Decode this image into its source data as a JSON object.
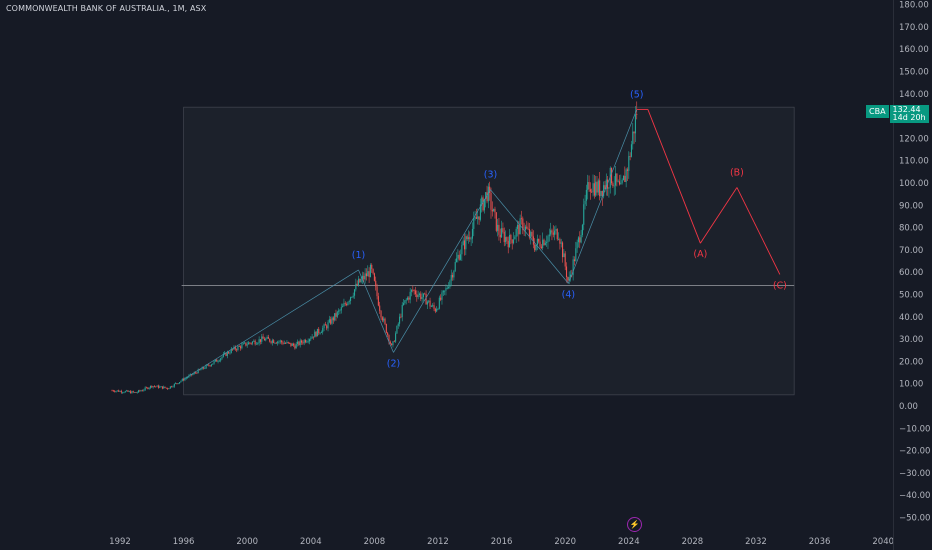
{
  "header": {
    "title": "COMMONWEALTH BANK OF AUSTRALIA., 1M, ASX"
  },
  "price_badge": {
    "symbol": "CBA",
    "price": "132.44",
    "countdown": "14d 20h",
    "color": "#089981"
  },
  "event_icon": "lightning-icon",
  "colors": {
    "background": "#161a25",
    "up_candle": "#26a69a",
    "down_candle": "#ef5350",
    "wave_label_blue": "#2962ff",
    "projection_red": "#f23645",
    "axis_text": "#b2b5be"
  },
  "chart_data": {
    "type": "candlestick",
    "title": "COMMONWEALTH BANK OF AUSTRALIA., 1M, ASX",
    "xlim": [
      1991,
      2040
    ],
    "ylim": [
      -55,
      183
    ],
    "x_ticks": [
      "1992",
      "1996",
      "2000",
      "2004",
      "2008",
      "2012",
      "2016",
      "2020",
      "2024",
      "2028",
      "2032",
      "2036",
      "2040"
    ],
    "y_ticks": [
      "180.00",
      "170.00",
      "160.00",
      "150.00",
      "140.00",
      "130.00",
      "120.00",
      "110.00",
      "100.00",
      "90.00",
      "80.00",
      "70.00",
      "60.00",
      "50.00",
      "40.00",
      "30.00",
      "20.00",
      "10.00",
      "0.00",
      "−10.00",
      "−20.00",
      "−30.00",
      "−40.00",
      "−50.00"
    ],
    "price_anchors": [
      [
        1991.5,
        7
      ],
      [
        1993,
        6
      ],
      [
        1994,
        9
      ],
      [
        1995,
        8
      ],
      [
        1996,
        12
      ],
      [
        1997,
        16
      ],
      [
        1998,
        20
      ],
      [
        1999,
        25
      ],
      [
        2000,
        28
      ],
      [
        2001,
        30
      ],
      [
        2002,
        29
      ],
      [
        2003,
        27
      ],
      [
        2004,
        31
      ],
      [
        2005,
        36
      ],
      [
        2006,
        44
      ],
      [
        2007,
        55
      ],
      [
        2007.8,
        61
      ],
      [
        2008.4,
        42
      ],
      [
        2009.1,
        26
      ],
      [
        2009.8,
        45
      ],
      [
        2010.4,
        52
      ],
      [
        2011.2,
        48
      ],
      [
        2011.8,
        43
      ],
      [
        2012.5,
        52
      ],
      [
        2013.3,
        68
      ],
      [
        2014.2,
        80
      ],
      [
        2015.1,
        96
      ],
      [
        2015.8,
        78
      ],
      [
        2016.5,
        74
      ],
      [
        2017.3,
        82
      ],
      [
        2018.1,
        72
      ],
      [
        2018.9,
        76
      ],
      [
        2019.6,
        78
      ],
      [
        2020.2,
        55
      ],
      [
        2020.9,
        76
      ],
      [
        2021.5,
        100
      ],
      [
        2022.2,
        97
      ],
      [
        2022.9,
        103
      ],
      [
        2023.5,
        96
      ],
      [
        2024.0,
        110
      ],
      [
        2024.5,
        132.44
      ]
    ],
    "elliott_wave": {
      "points": [
        {
          "label": "(1)",
          "x": 2007.0,
          "y": 61
        },
        {
          "label": "(2)",
          "x": 2009.2,
          "y": 24
        },
        {
          "label": "(3)",
          "x": 2015.3,
          "y": 97
        },
        {
          "label": "(4)",
          "x": 2020.2,
          "y": 55
        },
        {
          "label": "(5)",
          "x": 2024.5,
          "y": 133
        }
      ],
      "start": {
        "x": 1996.0,
        "y": 12
      }
    },
    "projection": {
      "points": [
        {
          "label": "",
          "x": 2025.2,
          "y": 133
        },
        {
          "label": "(A)",
          "x": 2028.5,
          "y": 73
        },
        {
          "label": "(B)",
          "x": 2030.8,
          "y": 98
        },
        {
          "label": "(C)",
          "x": 2033.5,
          "y": 59
        }
      ]
    },
    "horizontal_lines": [
      54
    ],
    "range_box": {
      "x": [
        1996,
        2034.4
      ],
      "y": [
        5,
        134
      ]
    }
  }
}
